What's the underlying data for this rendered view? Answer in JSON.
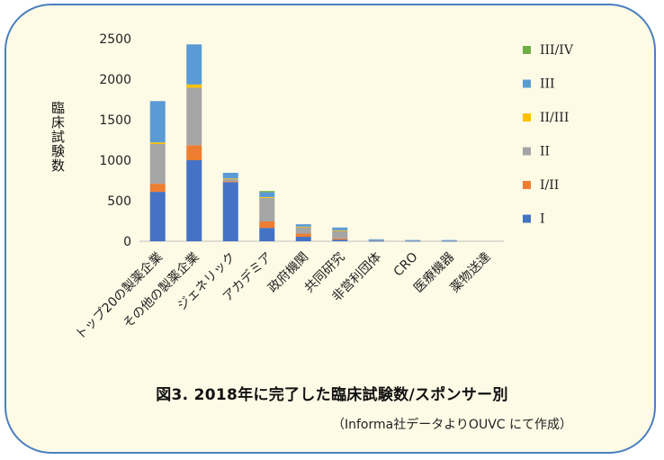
{
  "chart_data": {
    "type": "bar",
    "stacked": true,
    "title": "",
    "xlabel": "",
    "ylabel": "臨床試験数",
    "ylim": [
      0,
      2500
    ],
    "yticks": [
      0,
      500,
      1000,
      1500,
      2000,
      2500
    ],
    "grid": false,
    "legend_position": "right",
    "categories": [
      "トップ20の製薬企業",
      "その他の製薬企業",
      "ジェネリック",
      "アカデミア",
      "政府機関",
      "共同研究",
      "非営利団体",
      "CRO",
      "医療機器",
      "薬物送達"
    ],
    "series": [
      {
        "name": "I",
        "color": "#4472c4",
        "values": [
          610,
          1000,
          730,
          165,
          55,
          20,
          5,
          5,
          5,
          0
        ]
      },
      {
        "name": "I/II",
        "color": "#ed7d31",
        "values": [
          100,
          185,
          10,
          80,
          40,
          15,
          0,
          0,
          0,
          0
        ]
      },
      {
        "name": "II",
        "color": "#a5a5a5",
        "values": [
          490,
          710,
          30,
          290,
          80,
          95,
          10,
          5,
          5,
          0
        ]
      },
      {
        "name": "II/III",
        "color": "#ffc000",
        "values": [
          20,
          40,
          5,
          10,
          5,
          5,
          0,
          0,
          0,
          0
        ]
      },
      {
        "name": "III",
        "color": "#5b9bd5",
        "values": [
          510,
          495,
          70,
          60,
          30,
          35,
          10,
          5,
          5,
          0
        ]
      },
      {
        "name": "III/IV",
        "color": "#70ad47",
        "values": [
          0,
          0,
          0,
          15,
          0,
          0,
          0,
          0,
          0,
          0
        ]
      }
    ]
  },
  "caption": "図3. 2018年に完了した臨床試験数/スポンサー別",
  "source": "（Informa社データよりOUVC にて作成）"
}
